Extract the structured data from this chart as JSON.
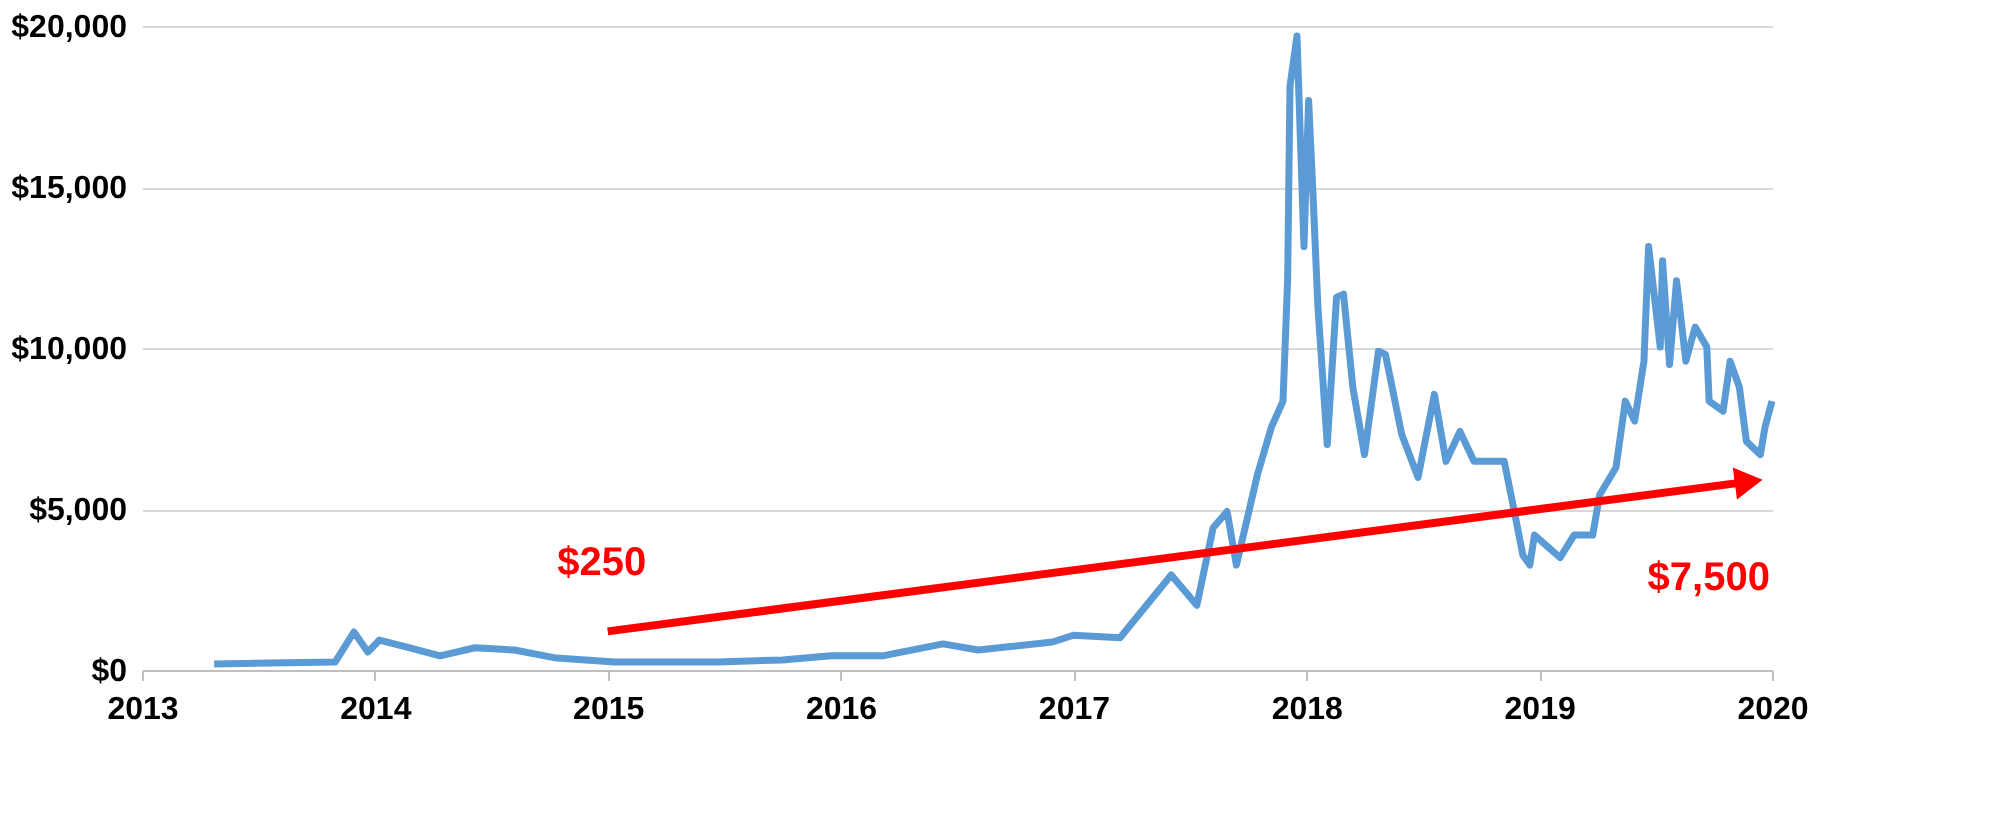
{
  "chart_data": {
    "type": "line",
    "series": [
      {
        "color": "#5b9bd5",
        "x": [
          2013.31,
          2013.83,
          2013.91,
          2013.97,
          2014.02,
          2014.15,
          2014.28,
          2014.43,
          2014.6,
          2014.78,
          2015.03,
          2015.47,
          2015.75,
          2015.96,
          2016.18,
          2016.44,
          2016.59,
          2016.91,
          2017.0,
          2017.2,
          2017.42,
          2017.53,
          2017.6,
          2017.66,
          2017.7,
          2017.79,
          2017.85,
          2017.9,
          2017.92,
          2017.93,
          2017.96,
          2017.99,
          2018.01,
          2018.03,
          2018.05,
          2018.09,
          2018.13,
          2018.16,
          2018.2,
          2018.25,
          2018.31,
          2018.34,
          2018.41,
          2018.48,
          2018.55,
          2018.6,
          2018.66,
          2018.72,
          2018.85,
          2018.89,
          2018.93,
          2018.96,
          2018.98,
          2019.09,
          2019.15,
          2019.23,
          2019.26,
          2019.33,
          2019.37,
          2019.41,
          2019.45,
          2019.47,
          2019.52,
          2019.53,
          2019.56,
          2019.59,
          2019.63,
          2019.67,
          2019.72,
          2019.73,
          2019.79,
          2019.82,
          2019.86,
          2019.89,
          2019.95,
          2019.97,
          2020.0
        ],
        "values": [
          190,
          250,
          1180,
          560,
          930,
          690,
          440,
          690,
          620,
          370,
          250,
          250,
          310,
          440,
          440,
          810,
          620,
          870,
          1080,
          1000,
          2950,
          2010,
          4420,
          4920,
          3260,
          6060,
          7540,
          8350,
          12150,
          18130,
          19690,
          13150,
          17690,
          14580,
          11270,
          7000,
          11580,
          11670,
          8780,
          6690,
          9900,
          9800,
          7310,
          5980,
          8560,
          6480,
          7410,
          6480,
          6480,
          5050,
          3570,
          3260,
          4190,
          3490,
          4190,
          4190,
          5440,
          6290,
          8350,
          7730,
          9590,
          13150,
          10030,
          12710,
          9490,
          12090,
          9590,
          10650,
          10030,
          8350,
          8040,
          9590,
          8780,
          7100,
          6690,
          7540,
          8350
        ]
      },
      {
        "type": "line",
        "color": "#ff0000",
        "x": [
          2015.0,
          2019.9
        ],
        "values": [
          1200,
          5850
        ]
      }
    ],
    "xlim": [
      2013,
      2020
    ],
    "xticks": [
      2013,
      2014,
      2015,
      2016,
      2017,
      2018,
      2019,
      2020
    ],
    "ylim": [
      0,
      20000
    ],
    "yticks": [
      {
        "value": 0,
        "label": "$0"
      },
      {
        "value": 5000,
        "label": "$5,000"
      },
      {
        "value": 10000,
        "label": "$10,000"
      },
      {
        "value": 15000,
        "label": "$15,000"
      },
      {
        "value": 20000,
        "label": "$20,000"
      }
    ],
    "grid": "y",
    "annotations": [
      {
        "text": "$250",
        "x": 2015.0,
        "y": 1200
      },
      {
        "text": "$7,500",
        "x": 2019.9,
        "y": 5850
      }
    ]
  }
}
